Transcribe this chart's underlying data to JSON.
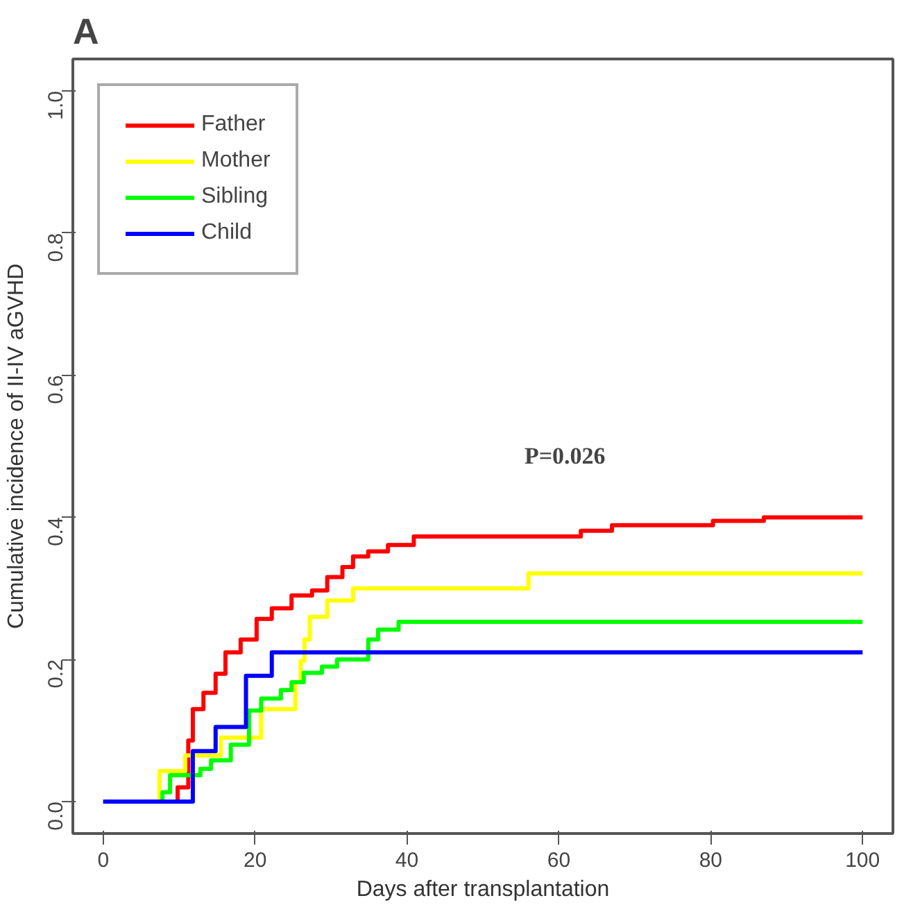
{
  "chart_data": {
    "type": "step",
    "title": "A",
    "xlabel": "Days after transplantation",
    "ylabel": "Cumulative incidence of II-IV aGVHD",
    "annotations": [
      "P=0.026"
    ],
    "xlim": [
      -4,
      104
    ],
    "ylim": [
      -0.045,
      1.045
    ],
    "xticks": [
      0,
      20,
      40,
      60,
      80,
      100
    ],
    "yticks": [
      {
        "value": 0,
        "label": "0.0"
      },
      {
        "value": 0.2,
        "label": "0.2"
      },
      {
        "value": 0.4,
        "label": "0.4"
      },
      {
        "value": 0.6,
        "label": "0.6"
      },
      {
        "value": 0.8,
        "label": "0.8"
      },
      {
        "value": 1,
        "label": "1.0"
      }
    ],
    "grid": false,
    "legend": "top left",
    "line_style": "solid",
    "marker": "none",
    "series": [
      {
        "name": "Father",
        "color": "#ff0000",
        "x": [
          0,
          9.8,
          11.2,
          11.8,
          13.2,
          14.8,
          16.1,
          18.1,
          20.2,
          22.2,
          24.8,
          27.5,
          29.5,
          31.5,
          32.9,
          34.9,
          37.5,
          40.9,
          62.9,
          67,
          80.3,
          87,
          100
        ],
        "values": [
          0,
          0.02,
          0.086,
          0.13,
          0.153,
          0.18,
          0.21,
          0.228,
          0.257,
          0.272,
          0.29,
          0.297,
          0.316,
          0.33,
          0.345,
          0.352,
          0.361,
          0.373,
          0.381,
          0.389,
          0.395,
          0.4,
          0.4
        ]
      },
      {
        "name": "Mother",
        "color": "#ffff00",
        "x": [
          0,
          7.4,
          10.8,
          15.5,
          20.8,
          25.3,
          26,
          26.5,
          27.2,
          29.5,
          32.9,
          56,
          100
        ],
        "values": [
          0,
          0.043,
          0.065,
          0.09,
          0.13,
          0.168,
          0.198,
          0.228,
          0.26,
          0.283,
          0.3,
          0.321,
          0.321
        ]
      },
      {
        "name": "Sibling",
        "color": "#00ff00",
        "x": [
          0,
          7.8,
          8.8,
          12.8,
          14.2,
          16.8,
          19.2,
          20.8,
          23.4,
          24.8,
          26.4,
          28.8,
          30.8,
          34.9,
          36.2,
          38.9,
          100
        ],
        "values": [
          0,
          0.013,
          0.037,
          0.046,
          0.058,
          0.08,
          0.128,
          0.145,
          0.157,
          0.168,
          0.181,
          0.19,
          0.2,
          0.228,
          0.242,
          0.253,
          0.253
        ]
      },
      {
        "name": "Child",
        "color": "#0000ff",
        "x": [
          0,
          11.8,
          14.8,
          18.8,
          22.2,
          100
        ],
        "values": [
          0,
          0.071,
          0.105,
          0.177,
          0.21,
          0.21
        ]
      }
    ]
  }
}
